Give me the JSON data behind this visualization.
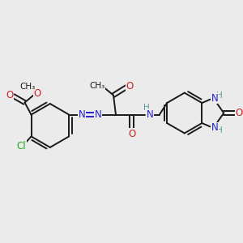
{
  "bg_color": "#ebebeb",
  "bond_color": "#1a1a1a",
  "nitrogen_color": "#2222cc",
  "oxygen_color": "#cc2222",
  "chlorine_color": "#22aa22",
  "hydrogen_color": "#559999",
  "figsize": [
    3.0,
    3.0
  ],
  "dpi": 100,
  "xlim": [
    0,
    300
  ],
  "ylim": [
    0,
    300
  ]
}
